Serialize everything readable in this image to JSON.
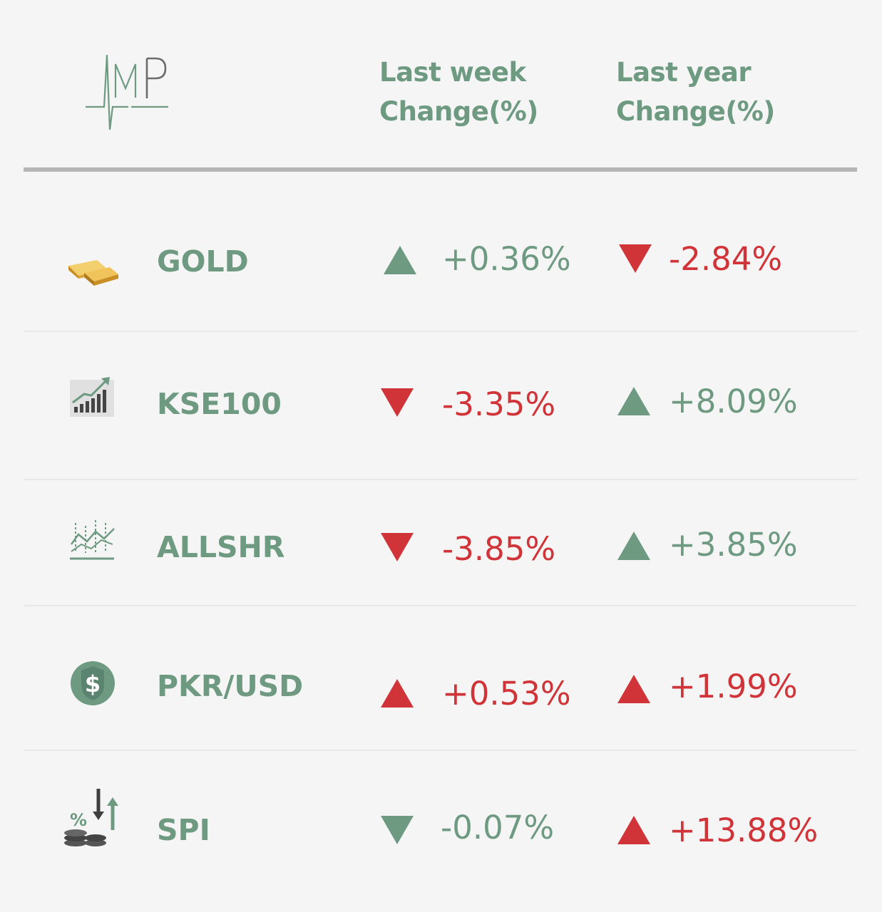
{
  "colors": {
    "green": "#6e9a82",
    "red": "#d13438",
    "background": "#f5f5f5"
  },
  "header": {
    "logo_icon": "amp-logo",
    "logo_text": "MP",
    "col_week": {
      "line1": "Last week",
      "line2": "Change(%)"
    },
    "col_year": {
      "line1": "Last year",
      "line2": "Change(%)"
    }
  },
  "rows": [
    {
      "name": "GOLD",
      "icon": "gold-bars-icon",
      "week": {
        "value": "+0.36%",
        "direction": "up",
        "color": "green"
      },
      "year": {
        "value": "-2.84%",
        "direction": "down",
        "color": "red"
      }
    },
    {
      "name": "KSE100",
      "icon": "bar-chart-growth-icon",
      "week": {
        "value": "-3.35%",
        "direction": "down",
        "color": "red"
      },
      "year": {
        "value": "+8.09%",
        "direction": "up",
        "color": "green"
      }
    },
    {
      "name": "ALLSHR",
      "icon": "line-chart-icon",
      "week": {
        "value": "-3.85%",
        "direction": "down",
        "color": "red"
      },
      "year": {
        "value": "+3.85%",
        "direction": "up",
        "color": "green"
      }
    },
    {
      "name": "PKR/USD",
      "icon": "dollar-coin-icon",
      "week": {
        "value": "+0.53%",
        "direction": "up",
        "color": "red"
      },
      "year": {
        "value": "+1.99%",
        "direction": "up",
        "color": "red"
      }
    },
    {
      "name": "SPI",
      "icon": "percent-coins-icon",
      "week": {
        "value": "-0.07%",
        "direction": "down",
        "color": "green"
      },
      "year": {
        "value": "+13.88%",
        "direction": "up",
        "color": "red"
      }
    }
  ]
}
